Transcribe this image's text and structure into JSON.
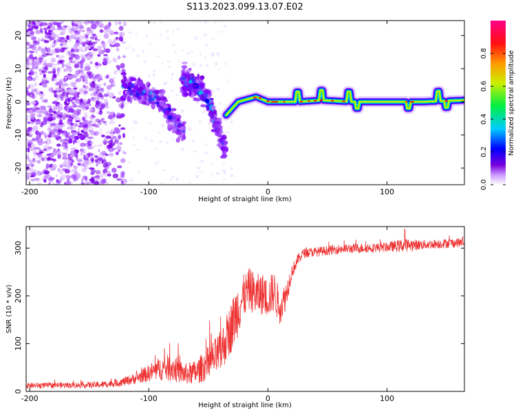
{
  "title": "S113.2023.099.13.07.E02",
  "colors": {
    "snr_line": "#ee3333",
    "frame": "#000000"
  },
  "chart_data": [
    {
      "type": "heatmap",
      "xlabel": "Height of straight line (km)",
      "ylabel": "Frequency (Hz)",
      "xlim": [
        -203,
        165
      ],
      "ylim": [
        -25,
        24.5
      ],
      "xticks": [
        -200,
        -100,
        0,
        100
      ],
      "xtick_labels": [
        "-200",
        "-100",
        "0",
        "100"
      ],
      "yticks": [
        -20,
        -10,
        0,
        10,
        20
      ],
      "ytick_labels": [
        "-20",
        "-10",
        "0",
        "10",
        "20"
      ],
      "colorbar": {
        "label": "Normalized spectral amplitude",
        "range": [
          0.0,
          1.0
        ],
        "ticks": [
          0.0,
          0.2,
          0.4,
          0.6,
          0.8
        ],
        "tick_labels": [
          "0.0",
          "0.2",
          "0.4",
          "0.6",
          "0.8"
        ],
        "colormap": [
          "#ffffff",
          "#7700dd",
          "#0000ff",
          "#00ddff",
          "#00ee44",
          "#ddee00",
          "#ff8800",
          "#ff0000",
          "#ff0088"
        ]
      },
      "features": {
        "noise_region_x": [
          -203,
          -120
        ],
        "descending_tracks": [
          {
            "x": [
              -122,
              -110,
              -100,
              -90,
              -80,
              -70
            ],
            "y": [
              5,
              3,
              2,
              0,
              -5,
              -10
            ]
          },
          {
            "x": [
              -72,
              -60,
              -50,
              -42,
              -35
            ],
            "y": [
              7,
              5,
              0,
              -8,
              -15
            ]
          }
        ],
        "carrier": {
          "x": [
            -35,
            -25,
            -10,
            0,
            25,
            45,
            70,
            100,
            130,
            165
          ],
          "y": [
            -4,
            0,
            1.5,
            0,
            0,
            0.5,
            0,
            0,
            0,
            0.5
          ],
          "peak_amplitude": 0.85
        }
      }
    },
    {
      "type": "line",
      "xlabel": "Height of straight line (km)",
      "ylabel": "SNR (10 * v/v)",
      "xlim": [
        -203,
        165
      ],
      "ylim": [
        0,
        345
      ],
      "xticks": [
        -200,
        -100,
        0,
        100
      ],
      "xtick_labels": [
        "-200",
        "-100",
        "0",
        "100"
      ],
      "yticks": [
        0,
        100,
        200,
        300
      ],
      "ytick_labels": [
        "0",
        "100",
        "200",
        "300"
      ],
      "series": [
        {
          "name": "SNR",
          "x": [
            -203,
            -180,
            -160,
            -140,
            -125,
            -110,
            -100,
            -90,
            -80,
            -70,
            -60,
            -50,
            -40,
            -30,
            -25,
            -20,
            -15,
            -10,
            -5,
            0,
            5,
            10,
            15,
            20,
            25,
            30,
            40,
            60,
            80,
            100,
            115,
            130,
            150,
            165
          ],
          "y": [
            12,
            13,
            13,
            14,
            18,
            28,
            38,
            48,
            50,
            36,
            40,
            60,
            80,
            140,
            175,
            200,
            215,
            200,
            205,
            195,
            210,
            175,
            200,
            250,
            275,
            290,
            292,
            298,
            300,
            302,
            306,
            307,
            310,
            312
          ],
          "noise": [
            6,
            6,
            6,
            7,
            8,
            12,
            18,
            25,
            30,
            22,
            26,
            35,
            45,
            55,
            60,
            45,
            45,
            45,
            45,
            40,
            45,
            35,
            30,
            15,
            12,
            10,
            10,
            10,
            10,
            10,
            14,
            10,
            10,
            10
          ]
        }
      ]
    }
  ]
}
